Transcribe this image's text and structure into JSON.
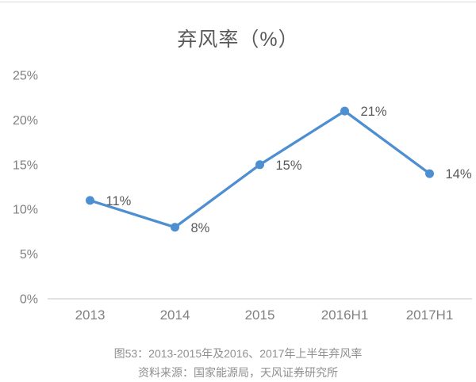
{
  "page": {
    "caption_line1": "图53：2013-2015年及2016、2017年上半年弃风率",
    "caption_line2": "资料来源：国家能源局，天风证券研究所"
  },
  "chart_data": {
    "type": "line",
    "title": "弃风率（%）",
    "categories": [
      "2013",
      "2014",
      "2015",
      "2016H1",
      "2017H1"
    ],
    "values": [
      11,
      8,
      15,
      21,
      14
    ],
    "data_labels": [
      "11%",
      "8%",
      "15%",
      "21%",
      "14%"
    ],
    "ylim": [
      0,
      25
    ],
    "ytick_step": 5,
    "ytick_labels": [
      "0%",
      "5%",
      "10%",
      "15%",
      "20%",
      "25%"
    ],
    "grid": false,
    "legend": "none",
    "line_color": "#4e8fd1",
    "marker_color": "#4e8fd1",
    "axis_color": "#d9d9d9",
    "data_label_color": "#595959",
    "tick_label_color": "#808080"
  }
}
